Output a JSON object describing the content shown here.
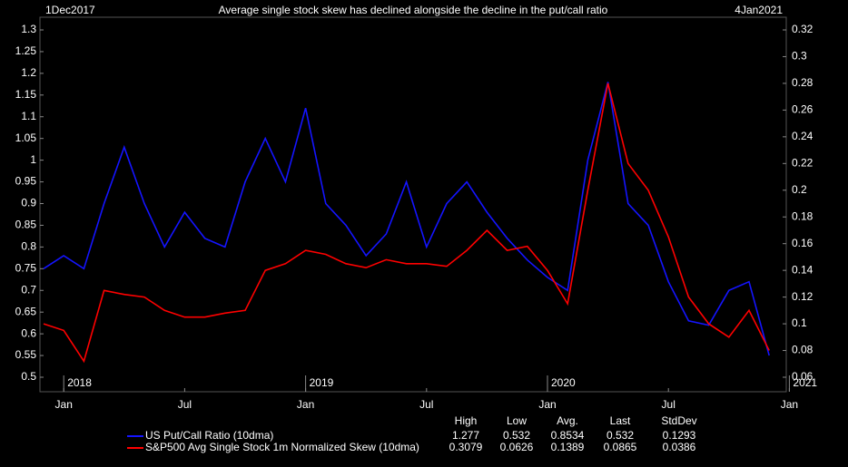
{
  "chart_data": {
    "type": "line",
    "title": "Average single stock skew has declined alongside the decline in the put/call ratio",
    "start_label": "1Dec2017",
    "end_label": "4Jan2021",
    "x": [
      "2017-12",
      "2018-01",
      "2018-02",
      "2018-03",
      "2018-04",
      "2018-05",
      "2018-06",
      "2018-07",
      "2018-08",
      "2018-09",
      "2018-10",
      "2018-11",
      "2018-12",
      "2019-01",
      "2019-02",
      "2019-03",
      "2019-04",
      "2019-05",
      "2019-06",
      "2019-07",
      "2019-08",
      "2019-09",
      "2019-10",
      "2019-11",
      "2019-12",
      "2020-01",
      "2020-02",
      "2020-03",
      "2020-04",
      "2020-05",
      "2020-06",
      "2020-07",
      "2020-08",
      "2020-09",
      "2020-10",
      "2020-11",
      "2020-12"
    ],
    "series": [
      {
        "name": "US Put/Call Ratio (10dma)",
        "color": "#1414ff",
        "axis": "y",
        "values": [
          0.75,
          0.78,
          0.75,
          0.9,
          1.03,
          0.9,
          0.8,
          0.88,
          0.82,
          0.8,
          0.95,
          1.05,
          0.95,
          1.12,
          0.9,
          0.85,
          0.78,
          0.83,
          0.95,
          0.8,
          0.9,
          0.95,
          0.88,
          0.82,
          0.77,
          0.73,
          0.7,
          1.0,
          1.18,
          0.9,
          0.85,
          0.72,
          0.63,
          0.62,
          0.7,
          0.72,
          0.55
        ],
        "stats": [
          1.277,
          0.532,
          0.8534,
          0.532,
          0.1293
        ]
      },
      {
        "name": "S&P500 Avg Single Stock 1m Normalized Skew (10dma)",
        "color": "#ff0000",
        "axis": "y2",
        "values": [
          0.1,
          0.095,
          0.072,
          0.125,
          0.122,
          0.12,
          0.11,
          0.105,
          0.105,
          0.108,
          0.11,
          0.14,
          0.145,
          0.155,
          0.152,
          0.145,
          0.142,
          0.148,
          0.145,
          0.145,
          0.143,
          0.155,
          0.17,
          0.155,
          0.158,
          0.14,
          0.115,
          0.2,
          0.28,
          0.22,
          0.2,
          0.165,
          0.12,
          0.1,
          0.09,
          0.11,
          0.08
        ],
        "stats": [
          0.3079,
          0.0626,
          0.1389,
          0.0865,
          0.0386
        ]
      }
    ],
    "stats_headers": [
      "High",
      "Low",
      "Avg.",
      "Last",
      "StdDev"
    ],
    "ylim": [
      0.5,
      1.3
    ],
    "yticks": [
      0.5,
      0.55,
      0.6,
      0.65,
      0.7,
      0.75,
      0.8,
      0.85,
      0.9,
      0.95,
      1,
      1.05,
      1.1,
      1.15,
      1.2,
      1.25,
      1.3
    ],
    "y2lim": [
      0.06,
      0.32
    ],
    "y2ticks": [
      0.06,
      0.08,
      0.1,
      0.12,
      0.14,
      0.16,
      0.18,
      0.2,
      0.22,
      0.24,
      0.26,
      0.28,
      0.3,
      0.32
    ],
    "xticks": [
      {
        "value": "2018-01",
        "label": "Jan"
      },
      {
        "value": "2018-07",
        "label": "Jul"
      },
      {
        "value": "2019-01",
        "label": "Jan"
      },
      {
        "value": "2019-07",
        "label": "Jul"
      },
      {
        "value": "2020-01",
        "label": "Jan"
      },
      {
        "value": "2020-07",
        "label": "Jul"
      },
      {
        "value": "2021-01",
        "label": "Jan"
      }
    ],
    "year_labels": [
      {
        "value": "2018-01",
        "label": "2018"
      },
      {
        "value": "2019-01",
        "label": "2019"
      },
      {
        "value": "2020-01",
        "label": "2020"
      },
      {
        "value": "2021-01",
        "label": "2021"
      }
    ]
  }
}
